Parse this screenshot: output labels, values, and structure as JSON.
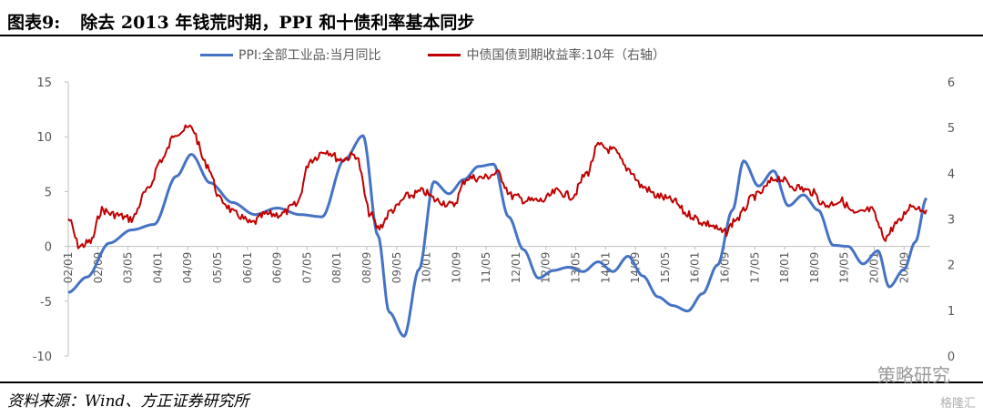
{
  "title": {
    "number": "图表9:",
    "text": "除去 2013 年钱荒时期，PPI 和十债利率基本同步"
  },
  "source": "资料来源：Wind、方正证券研究所",
  "watermark": "策略研究",
  "watermark_small": "格隆汇",
  "colors": {
    "ppi": "#4472C4",
    "yield": "#C00000"
  },
  "chart_data": {
    "type": "line",
    "legend_position": "top",
    "grid": false,
    "x_tick_labels": [
      "02/01",
      "02/09",
      "03/05",
      "04/01",
      "04/09",
      "05/05",
      "06/01",
      "06/09",
      "07/05",
      "08/01",
      "08/09",
      "09/05",
      "10/01",
      "10/09",
      "11/05",
      "12/01",
      "12/09",
      "13/05",
      "14/01",
      "14/09",
      "15/05",
      "16/01",
      "16/09",
      "17/05",
      "18/01",
      "18/09",
      "19/05",
      "20/01",
      "20/09"
    ],
    "y_left": {
      "min": -10,
      "max": 15,
      "ticks": [
        -10,
        -5,
        0,
        5,
        10,
        15
      ]
    },
    "y_right": {
      "min": 0,
      "max": 6,
      "ticks": [
        0,
        1,
        2,
        3,
        4,
        5,
        6
      ]
    },
    "series": [
      {
        "name": "PPI:全部工业品:当月同比",
        "axis": "left",
        "x": [
          "2002-01",
          "2002-06",
          "2002-12",
          "2003-06",
          "2003-12",
          "2004-06",
          "2004-10",
          "2005-03",
          "2005-09",
          "2006-03",
          "2006-09",
          "2007-03",
          "2007-09",
          "2008-03",
          "2008-08",
          "2008-12",
          "2009-03",
          "2009-07",
          "2009-11",
          "2010-03",
          "2010-07",
          "2010-11",
          "2011-03",
          "2011-07",
          "2011-11",
          "2012-03",
          "2012-07",
          "2012-11",
          "2013-03",
          "2013-07",
          "2013-11",
          "2014-03",
          "2014-07",
          "2014-11",
          "2015-03",
          "2015-07",
          "2015-11",
          "2016-03",
          "2016-07",
          "2016-11",
          "2017-02",
          "2017-06",
          "2017-10",
          "2018-02",
          "2018-06",
          "2018-10",
          "2019-02",
          "2019-06",
          "2019-10",
          "2020-02",
          "2020-05",
          "2020-09",
          "2020-12",
          "2021-03"
        ],
        "values": [
          -4.2,
          -2.8,
          0.3,
          1.5,
          2.0,
          6.4,
          8.4,
          5.8,
          4.0,
          2.9,
          3.5,
          2.9,
          2.7,
          7.9,
          10.1,
          1.0,
          -6.0,
          -8.2,
          -2.1,
          5.9,
          4.8,
          6.1,
          7.3,
          7.5,
          2.7,
          -0.3,
          -2.9,
          -2.2,
          -1.9,
          -2.3,
          -1.4,
          -2.3,
          -0.9,
          -2.7,
          -4.6,
          -5.4,
          -5.9,
          -4.3,
          -1.7,
          3.3,
          7.8,
          5.5,
          6.9,
          3.7,
          4.7,
          3.3,
          0.1,
          0.0,
          -1.6,
          -0.4,
          -3.7,
          -2.1,
          0.4,
          4.4
        ]
      },
      {
        "name": "中债国债到期收益率:10年（右轴）",
        "axis": "right",
        "x": [
          "2002-01",
          "2002-04",
          "2002-07",
          "2002-10",
          "2003-01",
          "2003-06",
          "2003-10",
          "2004-02",
          "2004-06",
          "2004-10",
          "2005-02",
          "2005-06",
          "2005-10",
          "2006-02",
          "2006-06",
          "2006-10",
          "2007-02",
          "2007-06",
          "2007-10",
          "2008-02",
          "2008-06",
          "2008-10",
          "2008-12",
          "2009-04",
          "2009-08",
          "2009-12",
          "2010-04",
          "2010-08",
          "2010-12",
          "2011-04",
          "2011-08",
          "2011-12",
          "2012-04",
          "2012-08",
          "2012-12",
          "2013-04",
          "2013-08",
          "2013-11",
          "2014-03",
          "2014-07",
          "2014-11",
          "2015-03",
          "2015-07",
          "2015-11",
          "2016-04",
          "2016-09",
          "2016-12",
          "2017-05",
          "2017-11",
          "2018-04",
          "2018-08",
          "2018-12",
          "2019-04",
          "2019-08",
          "2019-12",
          "2020-04",
          "2020-07",
          "2020-11",
          "2021-03"
        ],
        "values": [
          3.0,
          2.4,
          2.5,
          3.2,
          3.1,
          3.0,
          3.6,
          4.3,
          4.9,
          5.0,
          4.2,
          3.4,
          3.1,
          2.9,
          3.1,
          3.1,
          3.3,
          4.3,
          4.5,
          4.3,
          4.4,
          3.1,
          2.8,
          3.2,
          3.5,
          3.6,
          3.4,
          3.3,
          3.9,
          3.9,
          4.0,
          3.5,
          3.4,
          3.4,
          3.6,
          3.5,
          4.0,
          4.6,
          4.5,
          4.1,
          3.7,
          3.5,
          3.4,
          3.1,
          2.9,
          2.7,
          3.0,
          3.5,
          3.9,
          3.7,
          3.6,
          3.3,
          3.4,
          3.1,
          3.2,
          2.6,
          2.9,
          3.3,
          3.2
        ]
      }
    ]
  }
}
